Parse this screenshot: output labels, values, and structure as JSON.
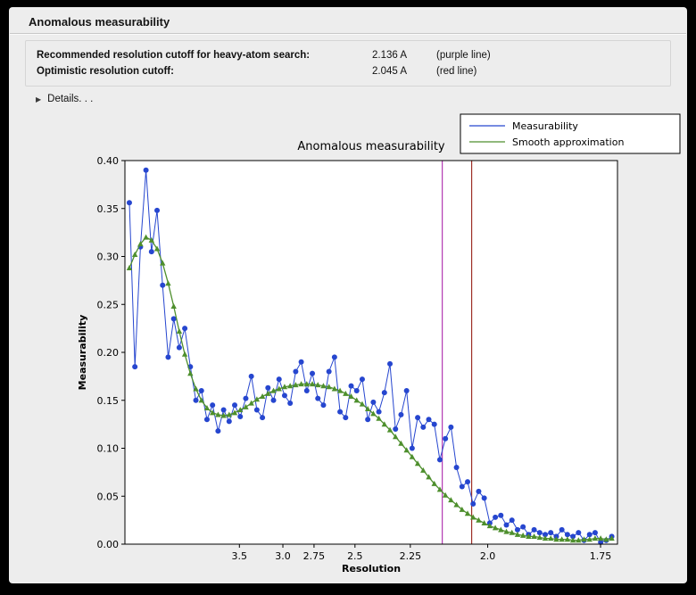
{
  "panel": {
    "title": "Anomalous measurability"
  },
  "info": {
    "rows": [
      {
        "label": "Recommended resolution cutoff for heavy-atom search:",
        "value": "2.136 A",
        "note": "(purple line)"
      },
      {
        "label": "Optimistic resolution cutoff:",
        "value": "2.045 A",
        "note": "(red line)"
      }
    ]
  },
  "details": {
    "label": "Details. . .",
    "icon": "disclosure-triangle",
    "icon_glyph": "▶"
  },
  "colors": {
    "panel_bg": "#ededed",
    "plot_bg": "#ffffff",
    "measurability_blue": "#2646cf",
    "smooth_green": "#4e8f2d",
    "purple_line": "#b339b3",
    "red_line": "#9e2f28"
  },
  "chart_data": {
    "type": "line",
    "title": "Anomalous measurability",
    "xlabel": "Resolution",
    "ylabel": "Measurability",
    "ylim": [
      0.0,
      0.4
    ],
    "yticks": [
      0.0,
      0.05,
      0.1,
      0.15,
      0.2,
      0.25,
      0.3,
      0.35,
      0.4
    ],
    "xticks": [
      {
        "d": 3.5,
        "label": "3.5"
      },
      {
        "d": 3.0,
        "label": "3.0"
      },
      {
        "d": 2.75,
        "label": "2.75"
      },
      {
        "d": 2.5,
        "label": "2.5"
      },
      {
        "d": 2.25,
        "label": "2.25"
      },
      {
        "d": 2.0,
        "label": "2.0"
      },
      {
        "d": 1.75,
        "label": "1.75"
      }
    ],
    "x_axis": {
      "scale": "1/d^2",
      "min_inv_d2": 0.004,
      "max_inv_d2": 0.338
    },
    "x": {
      "start": 0.007,
      "step": 0.00376,
      "count": 88,
      "unit": "1/d^2"
    },
    "grid": false,
    "legend": {
      "position": "top-right",
      "entries": [
        {
          "name": "Measurability",
          "color": "#2646cf"
        },
        {
          "name": "Smooth approximation",
          "color": "#4e8f2d"
        }
      ]
    },
    "series": [
      {
        "name": "Measurability",
        "color": "#2646cf",
        "marker": "circle",
        "values": [
          0.356,
          0.185,
          0.31,
          0.39,
          0.305,
          0.348,
          0.27,
          0.195,
          0.235,
          0.205,
          0.225,
          0.185,
          0.15,
          0.16,
          0.13,
          0.145,
          0.118,
          0.14,
          0.128,
          0.145,
          0.133,
          0.152,
          0.175,
          0.14,
          0.132,
          0.163,
          0.15,
          0.172,
          0.155,
          0.147,
          0.18,
          0.19,
          0.16,
          0.178,
          0.152,
          0.145,
          0.18,
          0.195,
          0.138,
          0.132,
          0.165,
          0.16,
          0.172,
          0.13,
          0.148,
          0.138,
          0.158,
          0.188,
          0.12,
          0.135,
          0.16,
          0.1,
          0.132,
          0.122,
          0.13,
          0.125,
          0.088,
          0.11,
          0.122,
          0.08,
          0.06,
          0.065,
          0.042,
          0.055,
          0.048,
          0.022,
          0.028,
          0.03,
          0.02,
          0.025,
          0.015,
          0.018,
          0.01,
          0.015,
          0.012,
          0.01,
          0.012,
          0.008,
          0.015,
          0.01,
          0.008,
          0.012,
          0.004,
          0.01,
          0.012,
          0.002,
          0.004,
          0.008
        ]
      },
      {
        "name": "Smooth approximation",
        "color": "#4e8f2d",
        "marker": "triangle",
        "values": [
          0.288,
          0.302,
          0.313,
          0.32,
          0.317,
          0.308,
          0.293,
          0.272,
          0.248,
          0.222,
          0.198,
          0.178,
          0.162,
          0.15,
          0.142,
          0.137,
          0.135,
          0.134,
          0.135,
          0.137,
          0.14,
          0.143,
          0.147,
          0.151,
          0.154,
          0.157,
          0.16,
          0.162,
          0.164,
          0.165,
          0.166,
          0.167,
          0.167,
          0.167,
          0.166,
          0.165,
          0.164,
          0.162,
          0.16,
          0.157,
          0.154,
          0.15,
          0.146,
          0.141,
          0.136,
          0.131,
          0.125,
          0.119,
          0.112,
          0.105,
          0.098,
          0.091,
          0.084,
          0.077,
          0.07,
          0.063,
          0.057,
          0.051,
          0.046,
          0.041,
          0.036,
          0.032,
          0.028,
          0.025,
          0.022,
          0.019,
          0.017,
          0.015,
          0.013,
          0.012,
          0.01,
          0.009,
          0.008,
          0.008,
          0.007,
          0.006,
          0.006,
          0.005,
          0.005,
          0.005,
          0.004,
          0.004,
          0.005,
          0.005,
          0.006,
          0.006,
          0.005,
          0.006
        ]
      }
    ],
    "vlines": [
      {
        "resolution": 2.136,
        "color": "#b339b3",
        "label": "purple line"
      },
      {
        "resolution": 2.045,
        "color": "#9e2f28",
        "label": "red line"
      }
    ]
  }
}
